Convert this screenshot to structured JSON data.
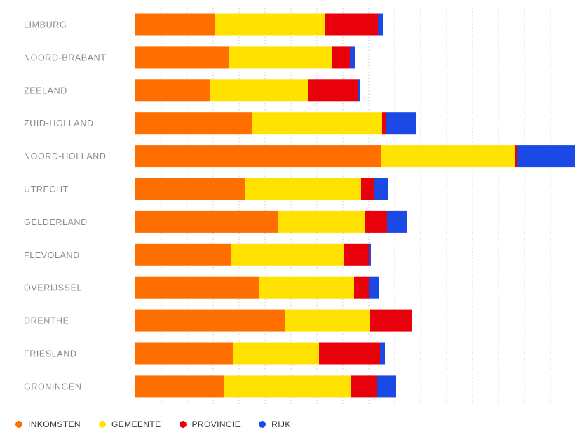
{
  "chart_data": {
    "type": "bar",
    "orientation": "horizontal",
    "stacked": true,
    "title": "",
    "xlabel": "",
    "ylabel": "",
    "categories": [
      "LIMBURG",
      "NOORD-BRABANT",
      "ZEELAND",
      "ZUID-HOLLAND",
      "NOORD-HOLLAND",
      "UTRECHT",
      "GELDERLAND",
      "FLEVOLAND",
      "OVERIJSSEL",
      "DRENTHE",
      "FRIESLAND",
      "GRONINGEN"
    ],
    "series": [
      {
        "name": "INKOMSTEN",
        "color": "#ff6f00",
        "values": [
          113,
          133,
          107,
          166,
          351,
          156,
          204,
          137,
          176,
          213,
          139,
          127
        ]
      },
      {
        "name": "GEMEENTE",
        "color": "#ffe200",
        "values": [
          158,
          148,
          139,
          186,
          190,
          166,
          124,
          160,
          136,
          121,
          123,
          180
        ]
      },
      {
        "name": "PROVINCIE",
        "color": "#e8000b",
        "values": [
          75,
          25,
          71,
          6,
          4,
          18,
          31,
          36,
          21,
          60,
          87,
          38
        ]
      },
      {
        "name": "RIJK",
        "color": "#1a49e6",
        "values": [
          7,
          7,
          3,
          42,
          85,
          20,
          29,
          3,
          14,
          1,
          7,
          27
        ]
      }
    ],
    "xlim": [
      0,
      627
    ],
    "grid": true,
    "legend_position": "bottom-left"
  }
}
